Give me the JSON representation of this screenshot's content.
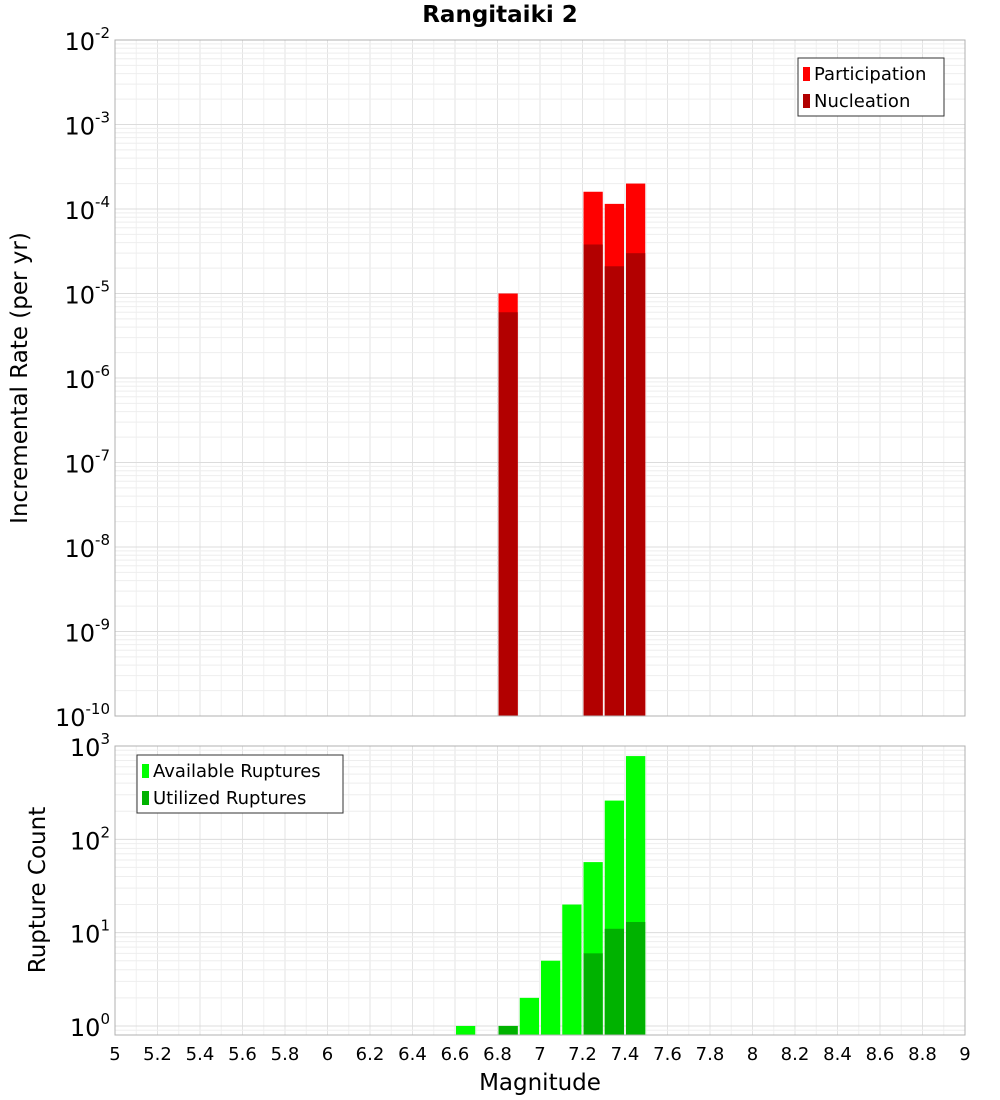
{
  "chart_data": [
    {
      "type": "bar",
      "title": "Rangitaiki 2",
      "xlabel": "",
      "ylabel": "Incremental Rate (per yr)",
      "yscale": "log",
      "xlim": [
        5,
        9
      ],
      "ylim": [
        1e-10,
        0.01
      ],
      "ytick_exponents": [
        "-2",
        "-3",
        "-4",
        "-5",
        "-6",
        "-7",
        "-8",
        "-9",
        "-10"
      ],
      "ytick_base": "10",
      "grid": true,
      "legend_position": "top-right",
      "bar_width": 0.1,
      "series": [
        {
          "name": "Participation",
          "color": "#ff0000",
          "points": [
            {
              "x": 6.85,
              "y": 1e-05
            },
            {
              "x": 7.25,
              "y": 0.00016
            },
            {
              "x": 7.35,
              "y": 0.000115
            },
            {
              "x": 7.45,
              "y": 0.0002
            }
          ]
        },
        {
          "name": "Nucleation",
          "color": "#b20000",
          "points": [
            {
              "x": 6.85,
              "y": 6e-06
            },
            {
              "x": 7.25,
              "y": 3.8e-05
            },
            {
              "x": 7.35,
              "y": 2.1e-05
            },
            {
              "x": 7.45,
              "y": 3e-05
            }
          ]
        }
      ]
    },
    {
      "type": "bar",
      "title": "",
      "xlabel": "Magnitude",
      "ylabel": "Rupture Count",
      "yscale": "log",
      "xlim": [
        5,
        9
      ],
      "ylim": [
        0.8,
        1000
      ],
      "xticks": [
        "5",
        "5.2",
        "5.4",
        "5.6",
        "5.8",
        "6",
        "6.2",
        "6.4",
        "6.6",
        "6.8",
        "7",
        "7.2",
        "7.4",
        "7.6",
        "7.8",
        "8",
        "8.2",
        "8.4",
        "8.6",
        "8.8",
        "9"
      ],
      "ytick_exponents": [
        "3",
        "2",
        "1",
        "0"
      ],
      "ytick_base": "10",
      "grid": true,
      "legend_position": "top-left",
      "bar_width": 0.1,
      "series": [
        {
          "name": "Available Ruptures",
          "color": "#00ff00",
          "points": [
            {
              "x": 6.65,
              "y": 1
            },
            {
              "x": 6.85,
              "y": 1
            },
            {
              "x": 6.95,
              "y": 2
            },
            {
              "x": 7.05,
              "y": 5
            },
            {
              "x": 7.15,
              "y": 20
            },
            {
              "x": 7.25,
              "y": 57
            },
            {
              "x": 7.35,
              "y": 260
            },
            {
              "x": 7.45,
              "y": 780
            }
          ]
        },
        {
          "name": "Utilized Ruptures",
          "color": "#00b200",
          "points": [
            {
              "x": 6.85,
              "y": 1
            },
            {
              "x": 7.25,
              "y": 6
            },
            {
              "x": 7.35,
              "y": 11
            },
            {
              "x": 7.45,
              "y": 13
            }
          ]
        }
      ]
    }
  ]
}
